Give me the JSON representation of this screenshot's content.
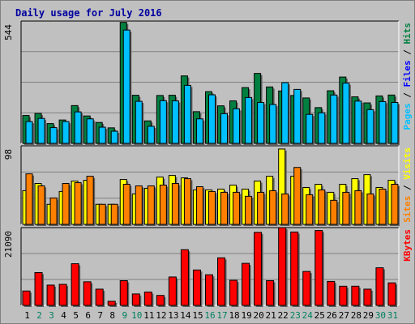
{
  "title": "Daily usage for July 2016",
  "chart_data": [
    {
      "type": "bar",
      "title": "Daily usage for July 2016",
      "categories": [
        "1",
        "2",
        "3",
        "4",
        "5",
        "6",
        "7",
        "8",
        "9",
        "10",
        "11",
        "12",
        "13",
        "14",
        "15",
        "16",
        "17",
        "18",
        "19",
        "20",
        "21",
        "22",
        "23",
        "24",
        "25",
        "26",
        "27",
        "28",
        "29",
        "30",
        "31"
      ],
      "weekend_days": [
        "2",
        "3",
        "9",
        "10",
        "16",
        "17",
        "23",
        "24",
        "30",
        "31"
      ],
      "ymax_label": "544",
      "ylim": [
        0,
        544
      ],
      "grid": true,
      "axis_legend": [
        {
          "name": "Hits",
          "color": "#008040"
        },
        {
          "name": "Files",
          "color": "#0000ff"
        },
        {
          "name": "Pages",
          "color": "#00c0ff"
        }
      ],
      "series": [
        {
          "name": "Hits",
          "color": "#008040",
          "values": [
            124,
            133,
            88,
            104,
            168,
            122,
            93,
            69,
            538,
            214,
            100,
            213,
            214,
            300,
            141,
            230,
            167,
            189,
            248,
            311,
            251,
            233,
            213,
            202,
            159,
            234,
            295,
            207,
            180,
            211,
            215
          ]
        },
        {
          "name": "Pages",
          "color": "#00c0ff",
          "values": [
            97,
            111,
            70,
            97,
            140,
            109,
            72,
            54,
            504,
            187,
            76,
            190,
            189,
            258,
            109,
            216,
            132,
            154,
            204,
            182,
            173,
            270,
            240,
            129,
            136,
            215,
            268,
            188,
            150,
            186,
            182
          ]
        }
      ]
    },
    {
      "type": "bar",
      "categories": [
        "1",
        "2",
        "3",
        "4",
        "5",
        "6",
        "7",
        "8",
        "9",
        "10",
        "11",
        "12",
        "13",
        "14",
        "15",
        "16",
        "17",
        "18",
        "19",
        "20",
        "21",
        "22",
        "23",
        "24",
        "25",
        "26",
        "27",
        "28",
        "29",
        "30",
        "31"
      ],
      "ymax_label": "98",
      "ylim": [
        0,
        98
      ],
      "grid": true,
      "axis_legend": [
        {
          "name": "Visits",
          "color": "#ffff00"
        },
        {
          "name": "Sites",
          "color": "#ff8000"
        }
      ],
      "series": [
        {
          "name": "Visits",
          "color": "#ffff00",
          "values": [
            42,
            51,
            25,
            41,
            54,
            55,
            25,
            25,
            56,
            38,
            45,
            59,
            61,
            58,
            43,
            43,
            44,
            49,
            44,
            54,
            60,
            94,
            60,
            46,
            50,
            40,
            50,
            57,
            62,
            46,
            55
          ]
        },
        {
          "name": "Sites",
          "color": "#ff8000",
          "values": [
            63,
            48,
            33,
            51,
            52,
            60,
            25,
            25,
            50,
            48,
            48,
            49,
            51,
            57,
            47,
            41,
            40,
            40,
            35,
            40,
            42,
            38,
            71,
            37,
            43,
            30,
            40,
            42,
            38,
            44,
            50
          ]
        }
      ]
    },
    {
      "type": "bar",
      "categories": [
        "1",
        "2",
        "3",
        "4",
        "5",
        "6",
        "7",
        "8",
        "9",
        "10",
        "11",
        "12",
        "13",
        "14",
        "15",
        "16",
        "17",
        "18",
        "19",
        "20",
        "21",
        "22",
        "23",
        "24",
        "25",
        "26",
        "27",
        "28",
        "29",
        "30",
        "31"
      ],
      "ymax_label": "21090",
      "ylim": [
        0,
        21090
      ],
      "grid": true,
      "axis_legend": [
        {
          "name": "KBytes",
          "color": "#ff0000"
        }
      ],
      "series": [
        {
          "name": "KBytes",
          "color": "#ff0000",
          "values": [
            3900,
            8900,
            5500,
            5700,
            11300,
            6400,
            4400,
            1100,
            6700,
            3100,
            3600,
            2700,
            7700,
            15100,
            9600,
            8300,
            12900,
            6800,
            11400,
            19800,
            6700,
            21090,
            19900,
            9200,
            20300,
            6500,
            5200,
            5200,
            4400,
            10200,
            6100
          ]
        }
      ]
    }
  ]
}
